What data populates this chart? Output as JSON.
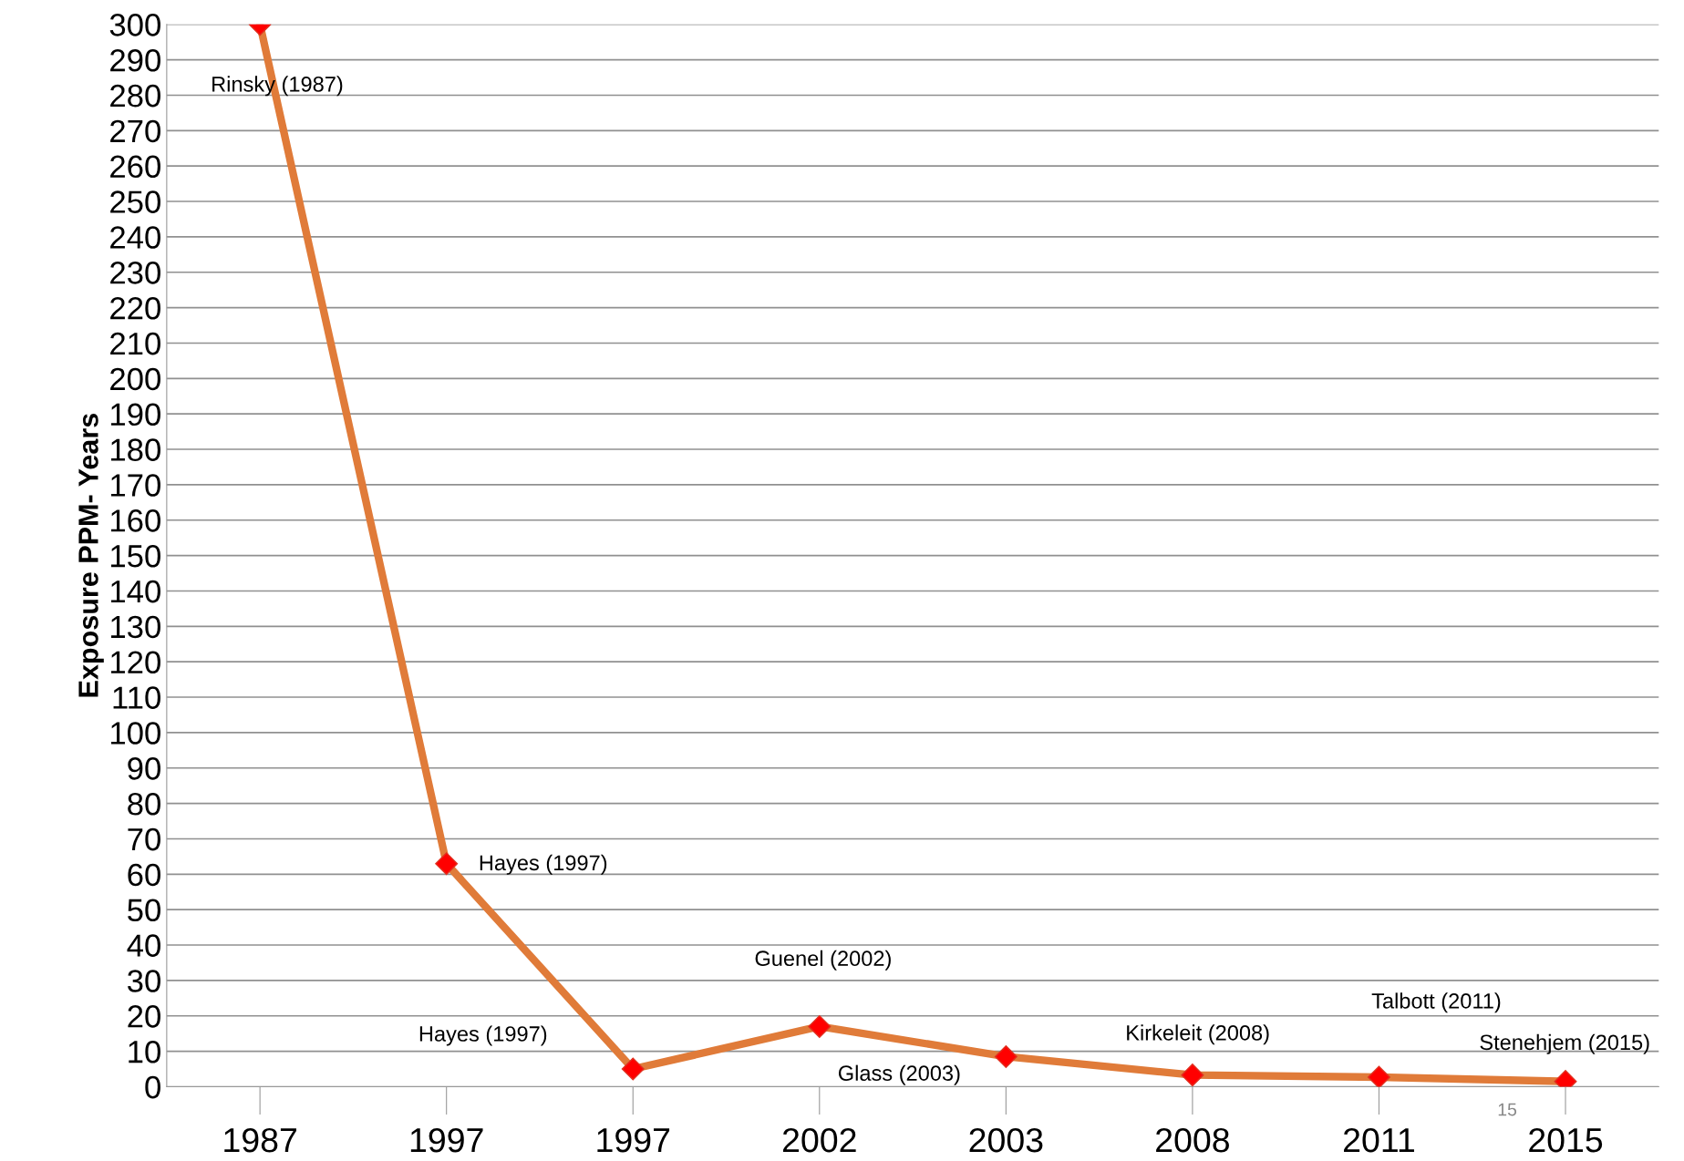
{
  "chart_data": {
    "type": "line",
    "ylabel": "Exposure PPM- Years",
    "categories": [
      "1987",
      "1997",
      "1997",
      "2002",
      "2003",
      "2008",
      "2011",
      "2015"
    ],
    "series": [
      {
        "color": "#e07b39",
        "values": [
          300,
          63,
          5,
          17,
          8.5,
          3.3,
          2.7,
          1.5
        ]
      }
    ],
    "marker": "diamond",
    "line_style": "solid",
    "ylim": [
      0,
      300
    ],
    "yticks": [
      0,
      10,
      20,
      30,
      40,
      50,
      60,
      70,
      80,
      90,
      100,
      110,
      120,
      130,
      140,
      150,
      160,
      170,
      180,
      190,
      200,
      210,
      220,
      230,
      240,
      250,
      260,
      270,
      280,
      290,
      300
    ],
    "grid": "y",
    "legend": false,
    "annotations": [
      "Rinsky (1987)",
      "Hayes (1997)",
      "Hayes (1997)",
      "Guenel (2002)",
      "Glass (2003)",
      "Kirkeleit (2008)",
      "Talbott (2011)",
      "Stenehjem (2015)",
      "15"
    ]
  }
}
